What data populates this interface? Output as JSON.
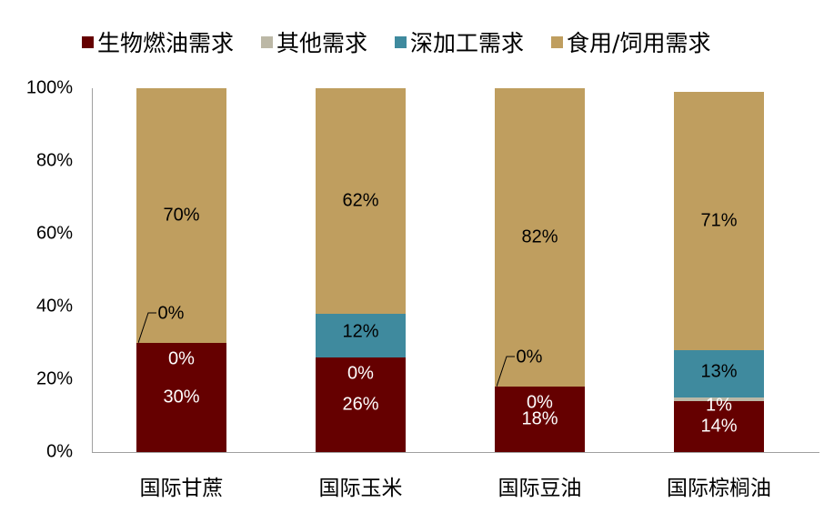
{
  "chart_data": {
    "type": "bar",
    "stacked": true,
    "title": "",
    "xlabel": "",
    "ylabel": "",
    "ylim": [
      0,
      100
    ],
    "yticks": [
      "0%",
      "20%",
      "40%",
      "60%",
      "80%",
      "100%"
    ],
    "legend_position": "top",
    "categories": [
      "国际甘蔗",
      "国际玉米",
      "国际豆油",
      "国际棕榈油"
    ],
    "series": [
      {
        "name": "生物燃油需求",
        "color": "#650000",
        "values": [
          30,
          26,
          18,
          14
        ],
        "labels": [
          "30%",
          "26%",
          "18%",
          "14%"
        ]
      },
      {
        "name": "其他需求",
        "color": "#bcb8a6",
        "values": [
          0,
          0,
          0,
          1
        ],
        "labels": [
          "0%",
          "0%",
          "0%",
          "1%"
        ]
      },
      {
        "name": "深加工需求",
        "color": "#3f8a9e",
        "values": [
          0,
          12,
          0,
          13
        ],
        "labels": [
          "0%",
          "12%",
          "0%",
          "13%"
        ]
      },
      {
        "name": "食用/饲用需求",
        "color": "#bf9e5f",
        "values": [
          70,
          62,
          82,
          71
        ],
        "labels": [
          "70%",
          "62%",
          "82%",
          "71%"
        ]
      }
    ]
  },
  "legend": {
    "items": [
      {
        "label": "生物燃油需求",
        "color": "#650000"
      },
      {
        "label": "其他需求",
        "color": "#bcb8a6"
      },
      {
        "label": "深加工需求",
        "color": "#3f8a9e"
      },
      {
        "label": "食用/饲用需求",
        "color": "#bf9e5f"
      }
    ]
  },
  "yaxis": {
    "ticks": [
      "0%",
      "20%",
      "40%",
      "60%",
      "80%",
      "100%"
    ]
  },
  "xaxis": {
    "labels": [
      "国际甘蔗",
      "国际玉米",
      "国际豆油",
      "国际棕榈油"
    ]
  }
}
